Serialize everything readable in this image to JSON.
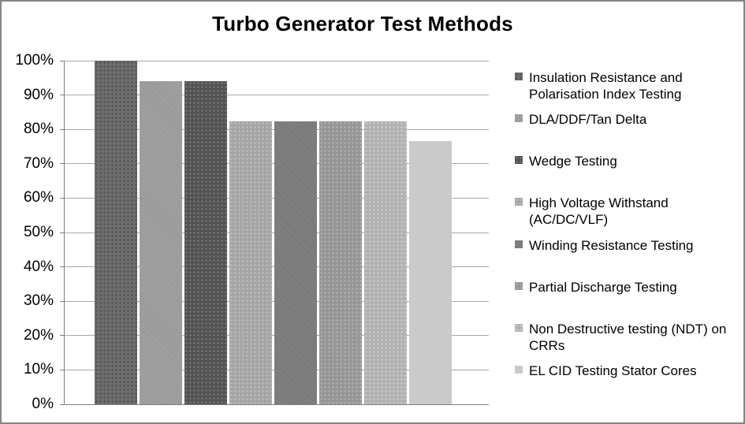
{
  "window": {
    "background": "#ffffff",
    "border_color": "#868686"
  },
  "chart_data": {
    "type": "bar",
    "title": "Turbo Generator Test Methods",
    "categories": [
      "Insulation Resistance and Polarisation Index Testing",
      "DLA/DDF/Tan Delta",
      "Wedge Testing",
      "High Voltage Withstand (AC/DC/VLF)",
      "Winding Resistance Testing",
      "Partial Discharge Testing",
      "Non Destructive testing (NDT) on CRRs",
      "EL CID Testing Stator Cores"
    ],
    "values": [
      100,
      94.1,
      94.1,
      82.4,
      82.4,
      82.4,
      82.4,
      76.5
    ],
    "xlabel": "",
    "ylabel": "",
    "ylim": [
      0,
      100
    ],
    "ytick_step": 10,
    "ytick_labels": [
      "0%",
      "10%",
      "20%",
      "30%",
      "40%",
      "50%",
      "60%",
      "70%",
      "80%",
      "90%",
      "100%"
    ],
    "grid": true,
    "legend_position": "right",
    "legend_labels_wrapped": [
      "Insulation Resistance and\nPolarisation Index Testing",
      "DLA/DDF/Tan Delta",
      "Wedge Testing",
      "High Voltage Withstand\n(AC/DC/VLF)",
      "Winding Resistance Testing",
      "Partial Discharge Testing",
      "Non Destructive testing (NDT) on\nCRRs",
      "EL CID Testing Stator Cores"
    ],
    "series_styles": [
      {
        "base": "#6d6d6d",
        "accent": "#4b4b4b",
        "pattern": "dots"
      },
      {
        "base": "#989898",
        "accent": "#a8a8a8",
        "pattern": "checker"
      },
      {
        "base": "#535353",
        "accent": "#7c7c7c",
        "pattern": "dots"
      },
      {
        "base": "#a5a5a5",
        "accent": "#c2c2c2",
        "pattern": "dots"
      },
      {
        "base": "#767676",
        "accent": "#8a8a8a",
        "pattern": "checker"
      },
      {
        "base": "#969696",
        "accent": "#b4b4b4",
        "pattern": "dots"
      },
      {
        "base": "#b1b1b1",
        "accent": "#d0d0d0",
        "pattern": "dots"
      },
      {
        "base": "#cacaca",
        "accent": "#cacaca",
        "pattern": "solid"
      }
    ],
    "gridline_color": "#a8a8a8",
    "axis_color": "#7f7f7f",
    "title_color": "#000000",
    "text_color": "#000000"
  }
}
